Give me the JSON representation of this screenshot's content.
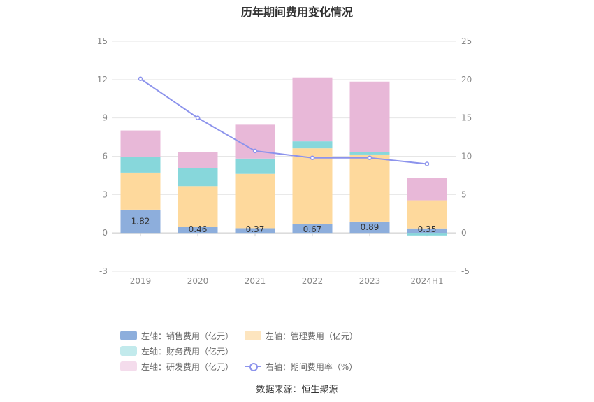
{
  "chart_data": {
    "type": "bar",
    "title": "历年期间费用变化情况",
    "categories": [
      "2019",
      "2020",
      "2021",
      "2022",
      "2023",
      "2024H1"
    ],
    "series": [
      {
        "name": "左轴：销售费用（亿元）",
        "axis": "left",
        "kind": "bar",
        "color": "#8daedc",
        "values": [
          1.82,
          0.46,
          0.37,
          0.67,
          0.89,
          0.35
        ],
        "labels": [
          "1.82",
          "0.46",
          "0.37",
          "0.67",
          "0.89",
          "0.35"
        ]
      },
      {
        "name": "左轴：管理费用（亿元）",
        "axis": "left",
        "kind": "bar",
        "color": "#fed99c",
        "values": [
          2.9,
          3.2,
          4.25,
          5.95,
          5.25,
          2.2
        ]
      },
      {
        "name": "左轴：财务费用（亿元）",
        "axis": "left",
        "kind": "bar",
        "color": "#87d7db",
        "values": [
          1.25,
          1.4,
          1.2,
          0.55,
          0.2,
          -0.2
        ]
      },
      {
        "name": "左轴：研发费用（亿元）",
        "axis": "left",
        "kind": "bar",
        "color": "#e8b8d8",
        "values": [
          2.05,
          1.25,
          2.65,
          5.0,
          5.5,
          1.75
        ]
      },
      {
        "name": "右轴：期间费用率（%）",
        "axis": "right",
        "kind": "line",
        "color": "#8c93ec",
        "values": [
          20.1,
          15.0,
          10.7,
          9.8,
          9.8,
          9.0
        ]
      }
    ],
    "left_axis": {
      "ticks": [
        "15",
        "12",
        "9",
        "6",
        "3",
        "0",
        "-3"
      ],
      "ylim": [
        -3,
        15
      ]
    },
    "right_axis": {
      "ticks": [
        "25",
        "20",
        "15",
        "10",
        "5",
        "0",
        "-5"
      ],
      "ylim": [
        -5,
        25
      ]
    }
  },
  "legend": [
    {
      "label": "左轴：销售费用（亿元）",
      "color": "#8daedc",
      "type": "bar"
    },
    {
      "label": "左轴：管理费用（亿元）",
      "color": "#fde5bf",
      "type": "bar"
    },
    {
      "label": "左轴：财务费用（亿元）",
      "color": "#c2eaec",
      "type": "bar"
    },
    {
      "label": "左轴：研发费用（亿元）",
      "color": "#f4dcec",
      "type": "bar"
    },
    {
      "label": "右轴：期间费用率（%）",
      "color": "#8c93ec",
      "type": "line"
    }
  ],
  "source": "数据来源：恒生聚源"
}
